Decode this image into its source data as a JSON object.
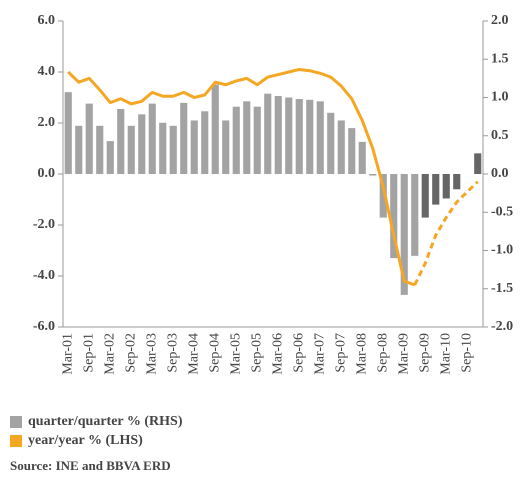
{
  "chart_data": {
    "type": "bar_line",
    "categories": [
      "Mar-01",
      null,
      "Sep-01",
      null,
      "Mar-02",
      null,
      "Sep-02",
      null,
      "Mar-03",
      null,
      "Sep-03",
      null,
      "Mar-04",
      null,
      "Sep-04",
      null,
      "Mar-05",
      null,
      "Sep-05",
      null,
      "Mar-06",
      null,
      "Sep-06",
      null,
      "Mar-07",
      null,
      "Sep-07",
      null,
      "Mar-08",
      null,
      "Sep-08",
      null,
      "Mar-09",
      null,
      "Sep-09",
      null,
      "Mar-10",
      null,
      "Sep-10",
      null
    ],
    "series": [
      {
        "name": "quarter/quarter % (RHS)",
        "type": "bar",
        "axis": "y2",
        "color": "#a3a3a3",
        "forecast_color": "#666666",
        "values": [
          1.07,
          0.63,
          0.92,
          0.63,
          0.43,
          0.85,
          0.63,
          0.78,
          0.92,
          0.67,
          0.63,
          0.93,
          0.7,
          0.82,
          1.17,
          0.7,
          0.88,
          0.95,
          0.88,
          1.05,
          1.02,
          1.0,
          0.98,
          0.97,
          0.95,
          0.8,
          0.7,
          0.6,
          0.42,
          -0.02,
          -0.57,
          -1.1,
          -1.58,
          -1.07,
          null,
          null,
          null,
          null,
          null,
          null
        ],
        "forecast_values": [
          null,
          null,
          null,
          null,
          null,
          null,
          null,
          null,
          null,
          null,
          null,
          null,
          null,
          null,
          null,
          null,
          null,
          null,
          null,
          null,
          null,
          null,
          null,
          null,
          null,
          null,
          null,
          null,
          null,
          null,
          null,
          null,
          null,
          null,
          -0.57,
          -0.4,
          -0.32,
          -0.2,
          null,
          0.27
        ]
      },
      {
        "name": "year/year % (LHS)",
        "type": "line",
        "color": "#f5a623",
        "values": [
          4.0,
          3.6,
          3.75,
          3.3,
          2.8,
          2.95,
          2.75,
          2.85,
          3.2,
          3.05,
          3.05,
          3.2,
          3.0,
          3.1,
          3.6,
          3.5,
          3.65,
          3.75,
          3.5,
          3.8,
          3.9,
          4.0,
          4.1,
          4.05,
          3.95,
          3.8,
          3.45,
          2.95,
          2.1,
          1.0,
          -0.5,
          -2.4,
          -4.2,
          -4.35,
          null,
          null,
          null,
          null,
          null,
          null
        ],
        "forecast_values": [
          null,
          null,
          null,
          null,
          null,
          null,
          null,
          null,
          null,
          null,
          null,
          null,
          null,
          null,
          null,
          null,
          null,
          null,
          null,
          null,
          null,
          null,
          null,
          null,
          null,
          null,
          null,
          null,
          null,
          null,
          null,
          null,
          null,
          -4.35,
          -3.5,
          -2.4,
          -1.7,
          -1.1,
          -0.7,
          -0.3
        ]
      }
    ],
    "ylim": [
      -6,
      6
    ],
    "yticks": [
      {
        "value": -6,
        "label": "-6.0"
      },
      {
        "value": -4,
        "label": "-4.0"
      },
      {
        "value": -2,
        "label": "-2.0"
      },
      {
        "value": 0,
        "label": "0.0"
      },
      {
        "value": 2,
        "label": "2.0"
      },
      {
        "value": 4,
        "label": "4.0"
      },
      {
        "value": 6,
        "label": "6.0"
      }
    ],
    "y2lim": [
      -2,
      2
    ],
    "y2ticks": [
      {
        "value": -2,
        "label": "-2.0"
      },
      {
        "value": -1.5,
        "label": "-1.5"
      },
      {
        "value": -1,
        "label": "-1.0"
      },
      {
        "value": -0.5,
        "label": "-0.5"
      },
      {
        "value": 0,
        "label": "0.0"
      },
      {
        "value": 0.5,
        "label": "0.5"
      },
      {
        "value": 1,
        "label": "1.0"
      },
      {
        "value": 1.5,
        "label": "1.5"
      },
      {
        "value": 2,
        "label": "2.0"
      }
    ],
    "source": "Source: INE and BBVA ERD"
  }
}
